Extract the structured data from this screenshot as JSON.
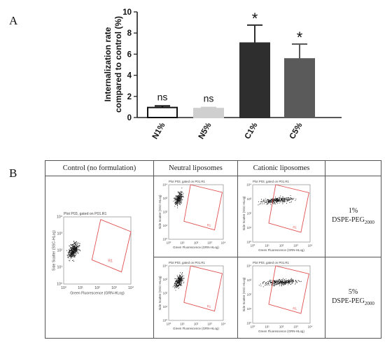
{
  "panels": {
    "a_letter": "A",
    "b_letter": "B"
  },
  "chart_data": {
    "type": "bar",
    "categories": [
      "N1%",
      "N5%",
      "C1%",
      "C5%"
    ],
    "values": [
      0.95,
      0.85,
      7.05,
      5.55
    ],
    "errors": [
      0.15,
      0.1,
      1.7,
      1.4
    ],
    "significance": [
      "ns",
      "ns",
      "*",
      "*"
    ],
    "bar_fill": [
      "#ffffff",
      "#cfcfcf",
      "#2e2e2e",
      "#5a5a5a"
    ],
    "bar_stroke": [
      "#111111",
      "#cfcfcf",
      "#2e2e2e",
      "#5a5a5a"
    ],
    "ylabel_line1": "Internalization rate",
    "ylabel_line2": "compared to control (%)",
    "ylim": [
      0,
      10
    ],
    "yticks": [
      "0",
      "2",
      "4",
      "6",
      "8",
      "10"
    ],
    "title": "",
    "xlabel": ""
  },
  "table": {
    "headers": {
      "control": "Control (no formulation)",
      "neutral": "Neutral liposomes",
      "cationic": "Cationic liposomes"
    },
    "rows": [
      {
        "percent": "1%",
        "label": "DSPE-PEG",
        "subscript": "2000"
      },
      {
        "percent": "5%",
        "label": "DSPE-PEG",
        "subscript": "2000"
      }
    ],
    "plot_title": "Plot P03, gated on P01.R1",
    "x_axis": "Green Fluorescence (GRN-HLog)",
    "y_axis": "Side Scatter (SSC-HLog)",
    "region": "R1",
    "ticks": [
      "10⁰",
      "10¹",
      "10²",
      "10³",
      "10⁴"
    ],
    "region_color": "#e05050",
    "dot_color": "#111111"
  }
}
